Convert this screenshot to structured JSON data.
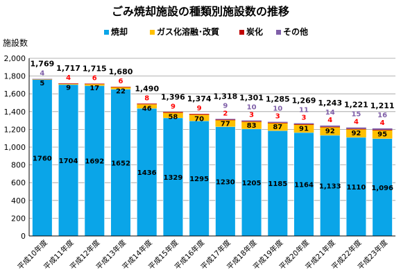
{
  "chart_data": {
    "type": "bar",
    "stacked": true,
    "title": "ごみ焼却施設の種類別施設数の推移",
    "ylabel": "施設数",
    "xlabel": "",
    "ylim": [
      0,
      2000
    ],
    "yticks": [
      0,
      200,
      400,
      600,
      800,
      1000,
      1200,
      1400,
      1600,
      1800,
      2000
    ],
    "ytick_labels": [
      "0",
      "200",
      "400",
      "600",
      "800",
      "1,000",
      "1,200",
      "1,400",
      "1,600",
      "1,800",
      "2,000"
    ],
    "grid": true,
    "legend_position": "top",
    "categories": [
      "平成10年度",
      "平成11年度",
      "平成12年度",
      "平成13年度",
      "平成14年度",
      "平成15年度",
      "平成16年度",
      "平成17年度",
      "平成18年度",
      "平成19年度",
      "平成20年度",
      "平成21年度",
      "平成22年度",
      "平成23年度"
    ],
    "series": [
      {
        "name": "焼却",
        "color": "#0aa5e8",
        "values": [
          1760,
          1704,
          1692,
          1652,
          1436,
          1329,
          1295,
          1230,
          1205,
          1185,
          1164,
          1133,
          1110,
          1096
        ],
        "labels": [
          "1760",
          "1704",
          "1692",
          "1652",
          "1436",
          "1329",
          "1295",
          "1230",
          "1205",
          "1185",
          "1164",
          "1,133",
          "1110",
          "1,096"
        ]
      },
      {
        "name": "ガス化溶融･改質",
        "color": "#ffc000",
        "values": [
          5,
          9,
          17,
          22,
          46,
          58,
          70,
          77,
          83,
          87,
          91,
          92,
          92,
          95
        ],
        "labels": [
          "5",
          "9",
          "17",
          "22",
          "46",
          "58",
          "70",
          "77",
          "83",
          "87",
          "91",
          "92",
          "92",
          "95"
        ]
      },
      {
        "name": "炭化",
        "color": "#c00000",
        "values": [
          0,
          4,
          6,
          6,
          8,
          9,
          9,
          2,
          3,
          3,
          3,
          4,
          4,
          4
        ],
        "labels": [
          "",
          "4",
          "6",
          "6",
          "8",
          "9",
          "9",
          "2",
          "3",
          "3",
          "3",
          "4",
          "4",
          "4"
        ]
      },
      {
        "name": "その他",
        "color": "#7f5fa8",
        "values": [
          4,
          0,
          0,
          0,
          0,
          0,
          0,
          9,
          10,
          10,
          11,
          14,
          15,
          16
        ],
        "labels": [
          "4",
          "",
          "",
          "",
          "",
          "",
          "",
          "9",
          "10",
          "10",
          "11",
          "14",
          "15",
          "16"
        ]
      }
    ],
    "totals": [
      1769,
      1717,
      1715,
      1680,
      1490,
      1396,
      1374,
      1318,
      1301,
      1285,
      1269,
      1243,
      1221,
      1211
    ],
    "total_labels": [
      "1,769",
      "1,717",
      "1,715",
      "1,680",
      "1,490",
      "1,396",
      "1,374",
      "1,318",
      "1,301",
      "1,285",
      "1,269",
      "1,243",
      "1,221",
      "1,211"
    ]
  }
}
